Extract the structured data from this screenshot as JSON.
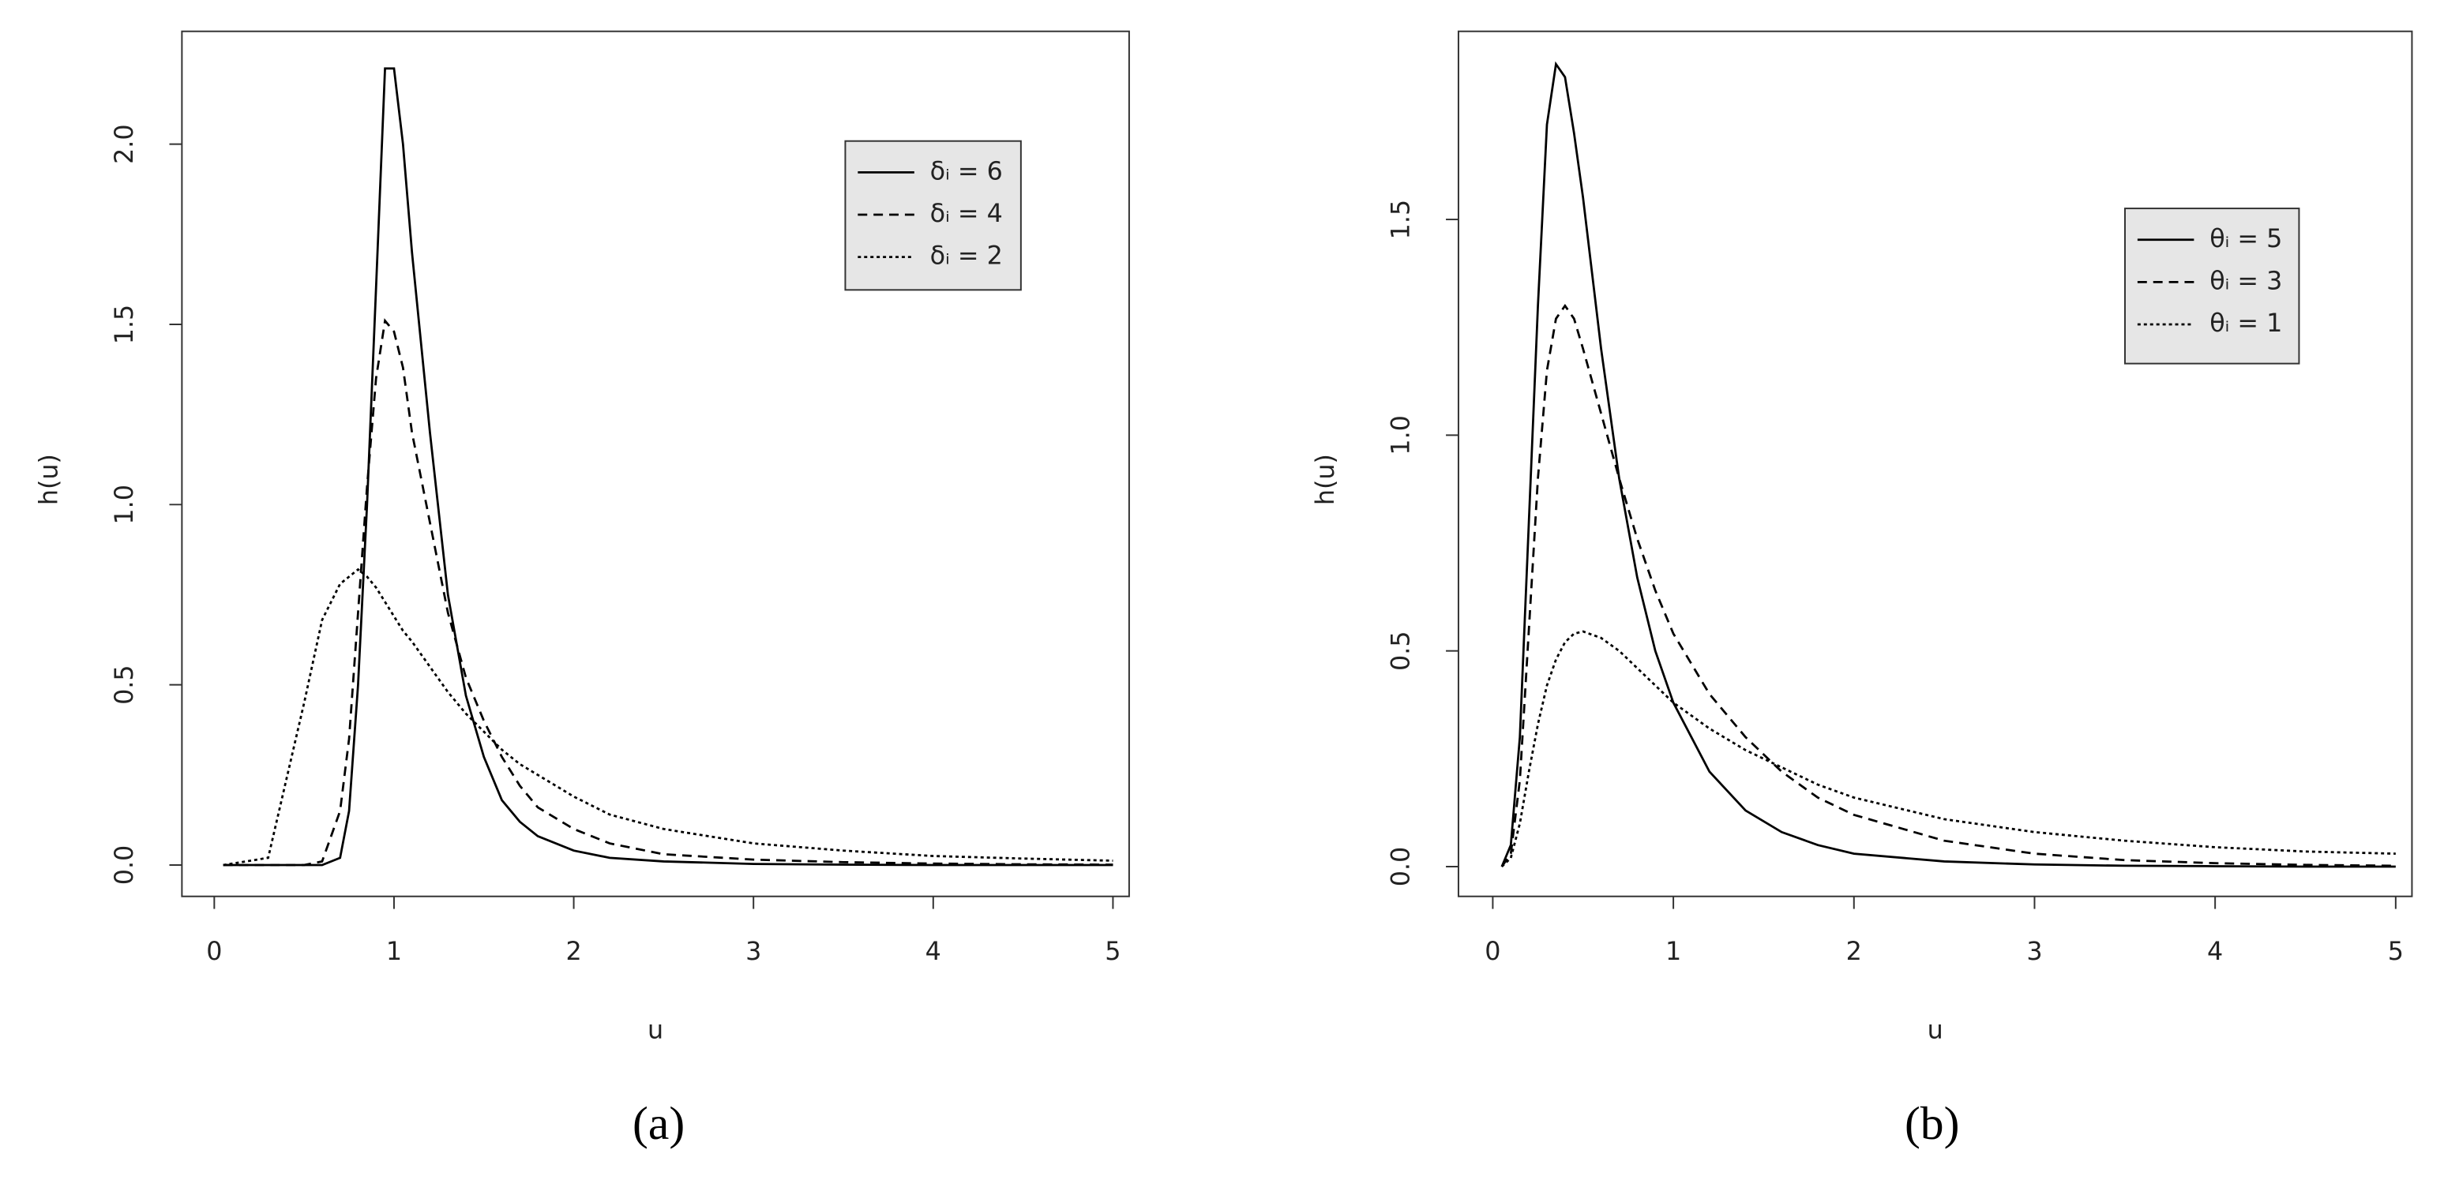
{
  "chart_data": [
    {
      "type": "line",
      "panel_label": "(a)",
      "xlabel": "u",
      "ylabel": "h(u)",
      "x": [
        0.05,
        0.3,
        0.5,
        0.6,
        0.7,
        0.75,
        0.8,
        0.85,
        0.9,
        0.95,
        1.0,
        1.05,
        1.1,
        1.2,
        1.3,
        1.4,
        1.5,
        1.6,
        1.7,
        1.8,
        2.0,
        2.2,
        2.5,
        3.0,
        3.5,
        4.0,
        4.5,
        5.0
      ],
      "series": [
        {
          "name": "δᵢ = 6",
          "color": "#000000",
          "linestyle": "solid",
          "values": [
            0,
            0,
            0,
            0,
            0.02,
            0.15,
            0.5,
            1.0,
            1.6,
            2.21,
            2.21,
            2.0,
            1.7,
            1.2,
            0.75,
            0.47,
            0.3,
            0.18,
            0.12,
            0.08,
            0.04,
            0.02,
            0.01,
            0.003,
            0.001,
            0,
            0,
            0
          ]
        },
        {
          "name": "δᵢ = 4",
          "color": "#000000",
          "linestyle": "dashed",
          "values": [
            0,
            0,
            0,
            0.01,
            0.15,
            0.35,
            0.7,
            1.05,
            1.35,
            1.51,
            1.48,
            1.38,
            1.2,
            0.95,
            0.7,
            0.52,
            0.4,
            0.3,
            0.22,
            0.16,
            0.1,
            0.06,
            0.03,
            0.015,
            0.008,
            0.004,
            0.002,
            0.001
          ]
        },
        {
          "name": "δᵢ = 2",
          "color": "#000000",
          "linestyle": "dotted",
          "values": [
            0,
            0.02,
            0.45,
            0.68,
            0.78,
            0.8,
            0.82,
            0.8,
            0.77,
            0.73,
            0.69,
            0.65,
            0.62,
            0.55,
            0.48,
            0.42,
            0.37,
            0.32,
            0.28,
            0.25,
            0.19,
            0.14,
            0.1,
            0.06,
            0.04,
            0.025,
            0.018,
            0.012
          ]
        }
      ],
      "xlim": [
        -0.18,
        5.09
      ],
      "ylim": [
        -0.087,
        2.313
      ],
      "xticks": [
        0,
        1,
        2,
        3,
        4,
        5
      ],
      "yticks": [
        {
          "value": 0,
          "label": "0.0"
        },
        {
          "value": 0.5,
          "label": "0.5"
        },
        {
          "value": 1,
          "label": "1.0"
        },
        {
          "value": 1.5,
          "label": "1.5"
        },
        {
          "value": 2,
          "label": "2.0"
        }
      ],
      "legend_background": "#e6e6e6"
    },
    {
      "type": "line",
      "panel_label": "(b)",
      "xlabel": "u",
      "ylabel": "h(u)",
      "x": [
        0.05,
        0.1,
        0.15,
        0.2,
        0.25,
        0.3,
        0.35,
        0.4,
        0.45,
        0.5,
        0.6,
        0.7,
        0.8,
        0.9,
        1.0,
        1.2,
        1.4,
        1.6,
        1.8,
        2.0,
        2.5,
        3.0,
        3.5,
        4.0,
        4.5,
        5.0
      ],
      "series": [
        {
          "name": "θᵢ = 5",
          "color": "#000000",
          "linestyle": "solid",
          "values": [
            0,
            0.05,
            0.3,
            0.8,
            1.3,
            1.72,
            1.86,
            1.83,
            1.7,
            1.55,
            1.2,
            0.9,
            0.67,
            0.5,
            0.38,
            0.22,
            0.13,
            0.08,
            0.05,
            0.03,
            0.012,
            0.005,
            0.002,
            0.001,
            0,
            0
          ]
        },
        {
          "name": "θᵢ = 3",
          "color": "#000000",
          "linestyle": "dashed",
          "values": [
            0,
            0.03,
            0.2,
            0.55,
            0.9,
            1.15,
            1.27,
            1.3,
            1.27,
            1.2,
            1.05,
            0.9,
            0.76,
            0.64,
            0.54,
            0.4,
            0.3,
            0.22,
            0.16,
            0.12,
            0.06,
            0.03,
            0.015,
            0.008,
            0.004,
            0.002
          ]
        },
        {
          "name": "θᵢ = 1",
          "color": "#000000",
          "linestyle": "dotted",
          "values": [
            0,
            0.02,
            0.1,
            0.22,
            0.33,
            0.42,
            0.48,
            0.52,
            0.54,
            0.545,
            0.53,
            0.5,
            0.46,
            0.42,
            0.38,
            0.32,
            0.27,
            0.23,
            0.19,
            0.16,
            0.11,
            0.08,
            0.06,
            0.045,
            0.035,
            0.03
          ]
        }
      ],
      "xlim": [
        -0.19,
        5.09
      ],
      "ylim": [
        -0.069,
        1.936
      ],
      "xticks": [
        0,
        1,
        2,
        3,
        4,
        5
      ],
      "yticks": [
        {
          "value": 0,
          "label": "0.0"
        },
        {
          "value": 0.5,
          "label": "0.5"
        },
        {
          "value": 1,
          "label": "1.0"
        },
        {
          "value": 1.5,
          "label": "1.5"
        }
      ],
      "legend_background": "#e6e6e6"
    }
  ]
}
